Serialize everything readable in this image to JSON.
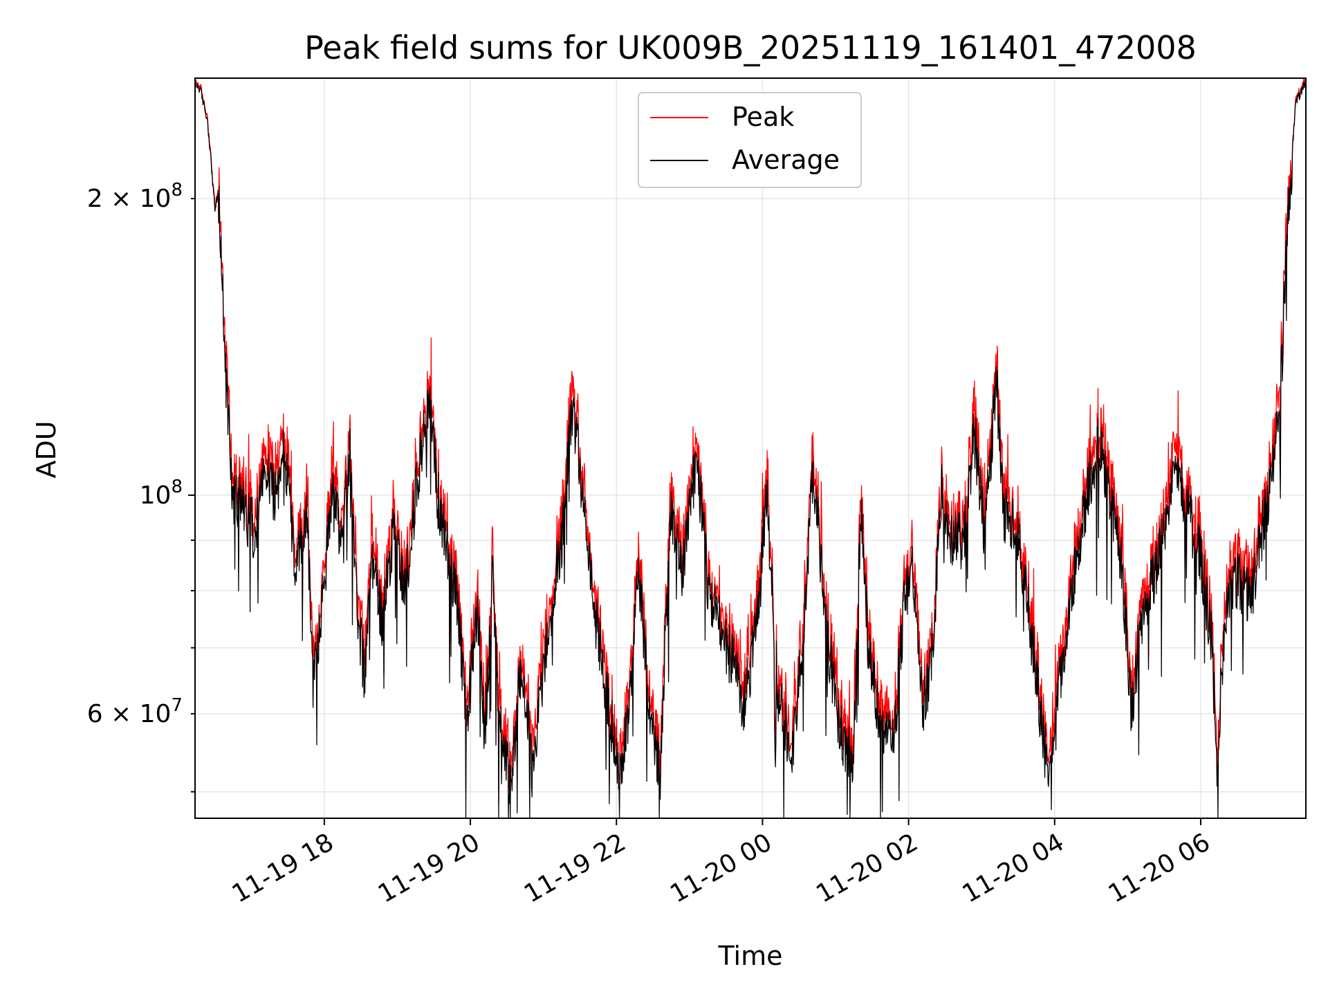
{
  "chart_data": {
    "type": "line",
    "title": "Peak field sums for UK009B_20251119_161401_472008",
    "xlabel": "Time",
    "ylabel": "ADU",
    "yscale": "log",
    "ylim": [
      47000000,
      265000000
    ],
    "xlim_hours": [
      16.23,
      7.44
    ],
    "grid": true,
    "legend_position": "upper center",
    "x_ticks": [
      {
        "hour": 18,
        "label": "11-19 18"
      },
      {
        "hour": 20,
        "label": "11-19 20"
      },
      {
        "hour": 22,
        "label": "11-19 22"
      },
      {
        "hour": 24,
        "label": "11-20 00"
      },
      {
        "hour": 26,
        "label": "11-20 02"
      },
      {
        "hour": 28,
        "label": "11-20 04"
      },
      {
        "hour": 30,
        "label": "11-20 06"
      }
    ],
    "y_major_ticks": [
      {
        "value": 100000000,
        "base": "10",
        "exp": "8",
        "mant": ""
      }
    ],
    "y_minor_ticks": [
      {
        "value": 60000000,
        "base": "10",
        "exp": "7",
        "mant": "6"
      },
      {
        "value": 200000000,
        "base": "10",
        "exp": "8",
        "mant": "2"
      }
    ],
    "y_minor_unlabeled": [
      50000000,
      70000000,
      80000000,
      90000000
    ],
    "series": [
      {
        "name": "Peak",
        "color": "#ff0000"
      },
      {
        "name": "Average",
        "color": "#000000"
      }
    ],
    "average_profile": [
      [
        16.23,
        262
      ],
      [
        16.3,
        258
      ],
      [
        16.4,
        240
      ],
      [
        16.5,
        195
      ],
      [
        16.55,
        202
      ],
      [
        16.65,
        130
      ],
      [
        16.75,
        100
      ],
      [
        16.9,
        97
      ],
      [
        17.05,
        92
      ],
      [
        17.2,
        106
      ],
      [
        17.35,
        98
      ],
      [
        17.45,
        112
      ],
      [
        17.6,
        84
      ],
      [
        17.75,
        97
      ],
      [
        17.85,
        64
      ],
      [
        18.0,
        80
      ],
      [
        18.1,
        101
      ],
      [
        18.25,
        88
      ],
      [
        18.35,
        112
      ],
      [
        18.45,
        76
      ],
      [
        18.55,
        66
      ],
      [
        18.65,
        86
      ],
      [
        18.8,
        74
      ],
      [
        18.95,
        93
      ],
      [
        19.1,
        79
      ],
      [
        19.25,
        100
      ],
      [
        19.45,
        128
      ],
      [
        19.55,
        100
      ],
      [
        19.7,
        87
      ],
      [
        19.8,
        80
      ],
      [
        19.95,
        58
      ],
      [
        20.1,
        77
      ],
      [
        20.2,
        56
      ],
      [
        20.3,
        82
      ],
      [
        20.4,
        59
      ],
      [
        20.55,
        51
      ],
      [
        20.7,
        67
      ],
      [
        20.85,
        52
      ],
      [
        21.05,
        72
      ],
      [
        21.25,
        90
      ],
      [
        21.4,
        123
      ],
      [
        21.55,
        98
      ],
      [
        21.7,
        76
      ],
      [
        21.85,
        64
      ],
      [
        22.05,
        51
      ],
      [
        22.2,
        64
      ],
      [
        22.3,
        85
      ],
      [
        22.45,
        60
      ],
      [
        22.6,
        51
      ],
      [
        22.75,
        95
      ],
      [
        22.9,
        84
      ],
      [
        23.1,
        109
      ],
      [
        23.25,
        81
      ],
      [
        23.4,
        75
      ],
      [
        23.55,
        69
      ],
      [
        23.75,
        61
      ],
      [
        23.95,
        76
      ],
      [
        24.05,
        101
      ],
      [
        24.2,
        64
      ],
      [
        24.4,
        53
      ],
      [
        24.55,
        71
      ],
      [
        24.7,
        106
      ],
      [
        24.85,
        75
      ],
      [
        25.05,
        58
      ],
      [
        25.25,
        54
      ],
      [
        25.35,
        97
      ],
      [
        25.45,
        69
      ],
      [
        25.6,
        60
      ],
      [
        25.8,
        56
      ],
      [
        25.95,
        79
      ],
      [
        26.05,
        86
      ],
      [
        26.2,
        59
      ],
      [
        26.35,
        73
      ],
      [
        26.45,
        102
      ],
      [
        26.55,
        92
      ],
      [
        26.75,
        89
      ],
      [
        26.9,
        116
      ],
      [
        27.05,
        90
      ],
      [
        27.2,
        131
      ],
      [
        27.3,
        96
      ],
      [
        27.5,
        92
      ],
      [
        27.7,
        70
      ],
      [
        27.85,
        56
      ],
      [
        27.95,
        51
      ],
      [
        28.05,
        63
      ],
      [
        28.25,
        81
      ],
      [
        28.45,
        101
      ],
      [
        28.6,
        114
      ],
      [
        28.75,
        100
      ],
      [
        28.9,
        88
      ],
      [
        29.05,
        60
      ],
      [
        29.2,
        76
      ],
      [
        29.35,
        82
      ],
      [
        29.5,
        91
      ],
      [
        29.65,
        109
      ],
      [
        29.8,
        98
      ],
      [
        30.0,
        86
      ],
      [
        30.15,
        71
      ],
      [
        30.22,
        53
      ],
      [
        30.35,
        77
      ],
      [
        30.5,
        82
      ],
      [
        30.7,
        79
      ],
      [
        30.9,
        98
      ],
      [
        31.0,
        106
      ],
      [
        31.1,
        130
      ],
      [
        31.2,
        190
      ],
      [
        31.3,
        250
      ],
      [
        31.44,
        262
      ]
    ]
  }
}
